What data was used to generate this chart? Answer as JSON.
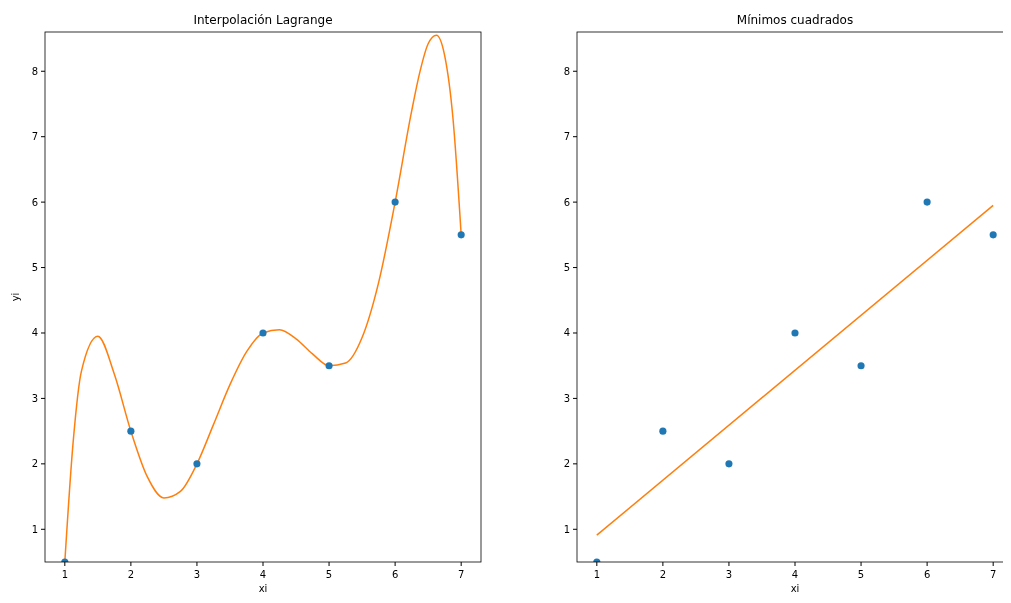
{
  "chart_data": [
    {
      "type": "scatter",
      "title": "Interpolación Lagrange",
      "xlabel": "xi",
      "ylabel": "yi",
      "grid": false,
      "xlim": [
        0.7,
        7.3
      ],
      "xticks": [
        1,
        2,
        3,
        4,
        5,
        6,
        7
      ],
      "ylim": [
        0.5,
        8.6
      ],
      "yticks": [
        1,
        2,
        3,
        4,
        5,
        6,
        7,
        8
      ],
      "series": [
        {
          "marker": "circle",
          "color": "#1f77b4",
          "x": [
            1,
            2,
            3,
            4,
            5,
            6,
            7
          ],
          "values": [
            0.5,
            2.5,
            2,
            4,
            3.5,
            6,
            5.5
          ]
        },
        {
          "type": "line",
          "marker": "none",
          "color": "#ff7f0e",
          "x": [
            1,
            1.125,
            1.25,
            1.5,
            1.75,
            2,
            2.25,
            2.5,
            2.75,
            3,
            3.25,
            3.5,
            3.75,
            4,
            4.25,
            4.5,
            4.75,
            5,
            5.25,
            5.5,
            5.75,
            6,
            6.25,
            6.375,
            6.5,
            6.625,
            6.75,
            6.875,
            7
          ],
          "values": [
            0.5,
            2.32,
            3.41,
            3.95,
            3.37,
            2.5,
            1.8,
            1.48,
            1.58,
            2,
            2.6,
            3.21,
            3.71,
            4,
            4.05,
            3.91,
            3.68,
            3.5,
            3.54,
            3.93,
            4.77,
            6,
            7.39,
            7.99,
            8.42,
            8.55,
            8.24,
            7.29,
            5.5
          ]
        }
      ]
    },
    {
      "type": "scatter",
      "title": "Mínimos cuadrados",
      "xlabel": "xi",
      "grid": false,
      "xlim": [
        0.7,
        7.3
      ],
      "xticks": [
        1,
        2,
        3,
        4,
        5,
        6,
        7
      ],
      "ylim": [
        0.5,
        8.6
      ],
      "yticks": [
        1,
        2,
        3,
        4,
        5,
        6,
        7,
        8
      ],
      "series": [
        {
          "marker": "circle",
          "color": "#1f77b4",
          "x": [
            1,
            2,
            3,
            4,
            5,
            6,
            7
          ],
          "values": [
            0.5,
            2.5,
            2,
            4,
            3.5,
            6,
            5.5
          ]
        },
        {
          "type": "line",
          "marker": "none",
          "color": "#ff7f0e",
          "x": [
            1,
            7
          ],
          "values": [
            0.91,
            5.95
          ]
        }
      ]
    }
  ]
}
